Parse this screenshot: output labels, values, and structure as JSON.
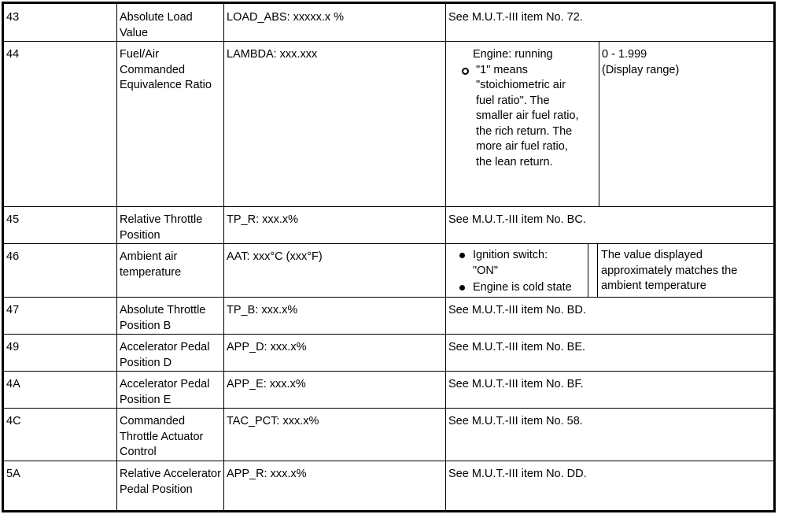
{
  "rows": [
    {
      "pid": "43",
      "name": "Absolute Load Value",
      "display": "LOAD_ABS: xxxxx.x %",
      "remark": "See M.U.T.-III item No. 72."
    },
    {
      "pid": "44",
      "name": "Fuel/Air Commanded Equivalence Ratio",
      "display": "LAMBDA: xxx.xxx",
      "condition": "Engine: running",
      "condition_bullet": "\"1\" means \"stoichiometric air fuel ratio\". The smaller air fuel ratio, the rich return. The more air fuel ratio, the lean return.",
      "normal": "0 - 1.999 (Display range)"
    },
    {
      "pid": "45",
      "name": "Relative Throttle Position",
      "display": "TP_R: xxx.x%",
      "remark": "See M.U.T.-III item No. BC."
    },
    {
      "pid": "46",
      "name": "Ambient air temperature",
      "display": "AAT: xxx°C (xxx°F)",
      "conditions": [
        "Ignition switch: \"ON\"",
        "Engine is cold state"
      ],
      "normal": "The value displayed approximately matches the ambient temperature"
    },
    {
      "pid": "47",
      "name": "Absolute Throttle Position B",
      "display": "TP_B: xxx.x%",
      "remark": "See M.U.T.-III item No. BD."
    },
    {
      "pid": "49",
      "name": "Accelerator Pedal Position D",
      "display": "APP_D: xxx.x%",
      "remark": "See M.U.T.-III item No. BE."
    },
    {
      "pid": "4A",
      "name": "Accelerator Pedal Position E",
      "display": "APP_E: xxx.x%",
      "remark": "See M.U.T.-III item No. BF."
    },
    {
      "pid": "4C",
      "name": "Commanded Throttle Actuator Control",
      "display": "TAC_PCT: xxx.x%",
      "remark": "See M.U.T.-III item No. 58."
    },
    {
      "pid": "5A",
      "name": "Relative Accelerator Pedal Position",
      "display": "APP_R: xxx.x%",
      "remark": "See M.U.T.-III item No. DD."
    }
  ]
}
